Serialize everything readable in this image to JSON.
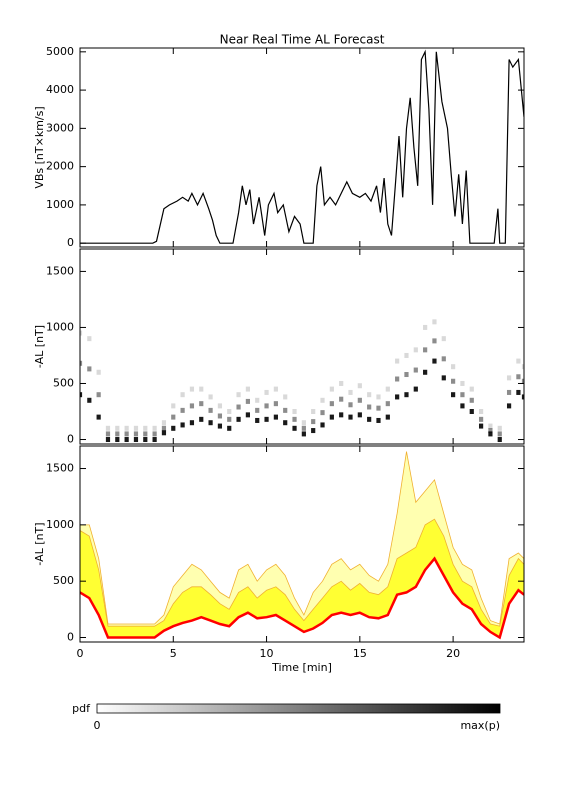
{
  "chart_data": [
    {
      "type": "line",
      "title": "Near Real Time AL Forecast",
      "ylabel": "VBs [nT×km/s]",
      "color": "#000000",
      "xlim": [
        0,
        23.8
      ],
      "xticks": [
        0,
        5,
        10,
        15,
        20
      ],
      "ylim": [
        -100,
        5100
      ],
      "yticks": [
        0,
        1000,
        2000,
        3000,
        4000,
        5000
      ],
      "x": [
        0,
        3.9,
        4.1,
        4.5,
        4.8,
        5.2,
        5.5,
        5.8,
        6,
        6.3,
        6.6,
        6.9,
        7.1,
        7.3,
        7.5,
        8.2,
        8.5,
        8.7,
        8.9,
        9.1,
        9.3,
        9.6,
        9.9,
        10.1,
        10.4,
        10.6,
        10.9,
        11.2,
        11.5,
        11.8,
        12,
        12.5,
        12.7,
        12.9,
        13.1,
        13.4,
        13.7,
        14,
        14.3,
        14.6,
        15,
        15.3,
        15.6,
        15.9,
        16.1,
        16.3,
        16.5,
        16.7,
        16.9,
        17.1,
        17.3,
        17.5,
        17.7,
        17.9,
        18.1,
        18.3,
        18.5,
        18.7,
        18.9,
        19.1,
        19.4,
        19.7,
        19.9,
        20.1,
        20.3,
        20.5,
        20.7,
        20.9,
        22.2,
        22.4,
        22.5,
        22.8,
        23,
        23.2,
        23.5,
        23.8
      ],
      "values": [
        0,
        0,
        50,
        900,
        1000,
        1100,
        1200,
        1100,
        1300,
        1000,
        1300,
        900,
        600,
        200,
        0,
        0,
        800,
        1500,
        1000,
        1400,
        500,
        1200,
        200,
        1000,
        1300,
        800,
        1000,
        300,
        700,
        500,
        0,
        0,
        1500,
        2000,
        1000,
        1200,
        1000,
        1300,
        1600,
        1300,
        1200,
        1300,
        1100,
        1500,
        800,
        1700,
        500,
        200,
        1500,
        2800,
        1200,
        3000,
        3800,
        2500,
        1500,
        4800,
        5000,
        3500,
        1000,
        5000,
        3700,
        3000,
        1800,
        700,
        1800,
        500,
        1900,
        0,
        0,
        900,
        0,
        0,
        4800,
        4600,
        4800,
        3300
      ]
    },
    {
      "type": "heatmap",
      "ylabel": "-AL [nT]",
      "color": "#000000",
      "xlim": [
        0,
        23.8
      ],
      "xticks": [
        0,
        5,
        10,
        15,
        20
      ],
      "ylim": [
        -40,
        1700
      ],
      "yticks": [
        0,
        500,
        1000,
        1500
      ],
      "x": [
        0,
        0.5,
        1,
        1.5,
        2,
        2.5,
        3,
        3.5,
        4,
        4.5,
        5,
        5.5,
        6,
        6.5,
        7,
        7.5,
        8,
        8.5,
        9,
        9.5,
        10,
        10.5,
        11,
        11.5,
        12,
        12.5,
        13,
        13.5,
        14,
        14.5,
        15,
        15.5,
        16,
        16.5,
        17,
        17.5,
        18,
        18.5,
        19,
        19.5,
        20,
        20.5,
        21,
        21.5,
        22,
        22.5,
        23,
        23.5,
        23.8
      ],
      "rows": [
        {
          "p": 0.9,
          "y": [
            400,
            350,
            200,
            0,
            0,
            0,
            0,
            0,
            0,
            60,
            100,
            130,
            150,
            180,
            150,
            120,
            100,
            180,
            220,
            170,
            180,
            200,
            150,
            100,
            50,
            80,
            130,
            200,
            220,
            200,
            220,
            180,
            170,
            200,
            380,
            400,
            450,
            600,
            700,
            550,
            400,
            300,
            250,
            120,
            50,
            0,
            300,
            420,
            380
          ]
        },
        {
          "p": 0.45,
          "y": [
            680,
            630,
            400,
            50,
            50,
            50,
            50,
            50,
            50,
            100,
            200,
            260,
            300,
            320,
            260,
            210,
            180,
            290,
            340,
            260,
            300,
            320,
            260,
            180,
            100,
            160,
            240,
            320,
            360,
            310,
            350,
            290,
            280,
            320,
            540,
            580,
            620,
            800,
            880,
            720,
            520,
            400,
            350,
            180,
            80,
            50,
            420,
            560,
            520
          ]
        },
        {
          "p": 0.15,
          "y": [
            950,
            900,
            600,
            100,
            100,
            100,
            100,
            100,
            100,
            150,
            300,
            400,
            450,
            450,
            380,
            300,
            250,
            400,
            450,
            350,
            420,
            450,
            380,
            250,
            150,
            250,
            350,
            450,
            500,
            420,
            480,
            400,
            380,
            450,
            700,
            750,
            800,
            1000,
            1050,
            900,
            650,
            500,
            450,
            250,
            120,
            100,
            550,
            700,
            650
          ]
        }
      ]
    },
    {
      "type": "area",
      "ylabel": "-AL [nT]",
      "xlabel": "Time [min]",
      "colors": {
        "outer": "#ffffb0",
        "inner": "#ffff33",
        "edge": "#f0b030",
        "median": "#ff0000"
      },
      "xlim": [
        0,
        23.8
      ],
      "xticks": [
        0,
        5,
        10,
        15,
        20
      ],
      "ylim": [
        -40,
        1700
      ],
      "yticks": [
        0,
        500,
        1000,
        1500
      ],
      "x": [
        0,
        0.5,
        1,
        1.5,
        2,
        2.5,
        3,
        3.5,
        4,
        4.5,
        5,
        5.5,
        6,
        6.5,
        7,
        7.5,
        8,
        8.5,
        9,
        9.5,
        10,
        10.5,
        11,
        11.5,
        12,
        12.5,
        13,
        13.5,
        14,
        14.5,
        15,
        15.5,
        16,
        16.5,
        17,
        17.5,
        18,
        18.5,
        19,
        19.5,
        20,
        20.5,
        21,
        21.5,
        22,
        22.5,
        23,
        23.5,
        23.8
      ],
      "median": [
        400,
        350,
        200,
        0,
        0,
        0,
        0,
        0,
        0,
        60,
        100,
        130,
        150,
        180,
        150,
        120,
        100,
        180,
        220,
        170,
        180,
        200,
        150,
        100,
        50,
        80,
        130,
        200,
        220,
        200,
        220,
        180,
        170,
        200,
        380,
        400,
        450,
        600,
        700,
        550,
        400,
        300,
        250,
        120,
        50,
        0,
        300,
        420,
        380
      ],
      "inner_upper": [
        950,
        900,
        600,
        100,
        100,
        100,
        100,
        100,
        100,
        150,
        300,
        400,
        450,
        450,
        380,
        300,
        250,
        400,
        450,
        350,
        420,
        450,
        380,
        250,
        150,
        250,
        350,
        450,
        500,
        420,
        480,
        400,
        380,
        450,
        700,
        750,
        800,
        1000,
        1050,
        900,
        650,
        500,
        450,
        250,
        120,
        100,
        550,
        700,
        650
      ],
      "outer_upper": [
        1000,
        1000,
        700,
        120,
        120,
        120,
        120,
        120,
        120,
        200,
        450,
        550,
        650,
        600,
        500,
        400,
        350,
        600,
        650,
        500,
        600,
        650,
        550,
        350,
        200,
        400,
        500,
        650,
        700,
        600,
        650,
        550,
        500,
        650,
        1100,
        1650,
        1200,
        1300,
        1400,
        1100,
        800,
        650,
        600,
        350,
        150,
        120,
        700,
        750,
        700
      ]
    }
  ],
  "colorbar": {
    "label": "pdf",
    "min": 0,
    "max_label": "max(p)"
  }
}
